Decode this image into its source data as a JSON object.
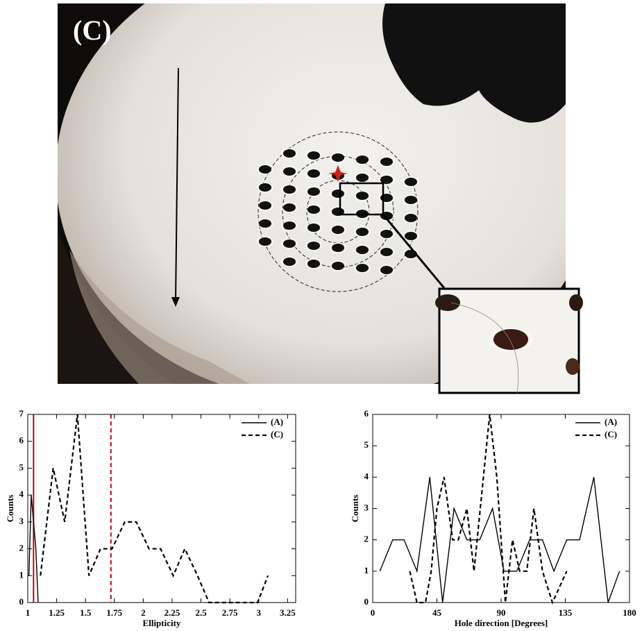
{
  "panel_label": "(C)",
  "chart_data": [
    {
      "type": "line",
      "xlabel": "Ellipticity",
      "ylabel": "Counts",
      "xlim": [
        1,
        3.32
      ],
      "xticks": [
        1,
        1.25,
        1.5,
        1.75,
        2,
        2.25,
        2.5,
        2.75,
        3,
        3.25
      ],
      "ylim": [
        0,
        7
      ],
      "yticks": [
        0,
        1,
        2,
        3,
        4,
        5,
        6,
        7
      ],
      "legend": "upper right",
      "series": [
        {
          "name": "(A)",
          "color": "#000000",
          "style": "solid",
          "x": [
            1.01,
            1.03,
            1.05,
            1.07,
            1.09
          ],
          "values": [
            1,
            4,
            3,
            2,
            0
          ]
        },
        {
          "name": "(C)",
          "color": "#000000",
          "style": "dashed",
          "x": [
            1.11,
            1.22,
            1.32,
            1.43,
            1.53,
            1.63,
            1.73,
            1.84,
            1.94,
            2.05,
            2.15,
            2.26,
            2.36,
            2.47,
            2.57,
            2.99,
            3.08
          ],
          "values": [
            1,
            5,
            3,
            7,
            1,
            2,
            2,
            3,
            3,
            2,
            2,
            1,
            2,
            1,
            0,
            0,
            1
          ]
        }
      ],
      "reference_lines": [
        {
          "value": 1.05,
          "color": "#cc0000",
          "style": "solid"
        },
        {
          "value": 1.72,
          "color": "#cc0000",
          "style": "dashed"
        }
      ]
    },
    {
      "type": "line",
      "xlabel": "Hole direction [Degrees]",
      "ylabel": "Counts",
      "xlim": [
        0,
        180
      ],
      "xticks": [
        0,
        45,
        90,
        135,
        180
      ],
      "ylim": [
        0,
        6
      ],
      "yticks": [
        0,
        1,
        2,
        3,
        4,
        5,
        6
      ],
      "legend": "upper right",
      "series": [
        {
          "name": "(A)",
          "color": "#000000",
          "style": "solid",
          "x": [
            5,
            14,
            22,
            31,
            40,
            49,
            57,
            66,
            75,
            84,
            92,
            101,
            110,
            119,
            127,
            136,
            145,
            155,
            165,
            173
          ],
          "values": [
            1,
            2,
            2,
            1,
            4,
            0,
            3,
            2,
            2,
            3,
            1,
            1,
            2,
            2,
            1,
            2,
            2,
            4,
            0,
            1
          ]
        },
        {
          "name": "(C)",
          "color": "#000000",
          "style": "dashed",
          "x": [
            26,
            31,
            37,
            41,
            45,
            50,
            56,
            60,
            66,
            71,
            82,
            87,
            93,
            98,
            103,
            108,
            113,
            119,
            126,
            136
          ],
          "values": [
            1,
            0,
            0,
            1,
            3,
            4,
            2,
            2,
            3,
            1,
            6,
            4,
            0,
            2,
            1,
            1,
            3,
            1,
            0,
            1
          ]
        }
      ]
    }
  ]
}
